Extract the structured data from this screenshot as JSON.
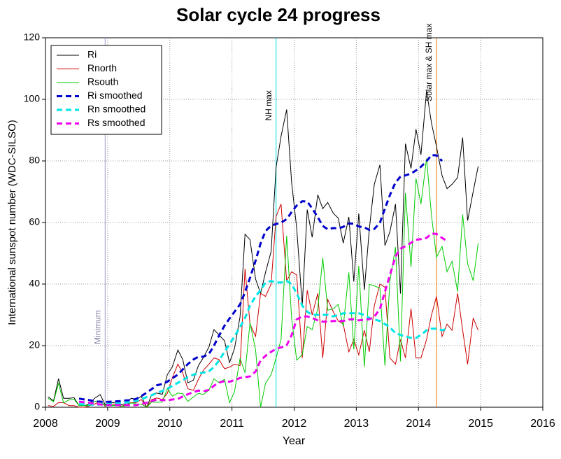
{
  "chart_data": {
    "type": "line",
    "title": "Solar cycle 24 progress",
    "xlabel": "Year",
    "ylabel": "International sunspot number (WDC-SILSO)",
    "xlim": [
      2008,
      2016
    ],
    "xticks": [
      2008,
      2009,
      2010,
      2011,
      2012,
      2013,
      2014,
      2015,
      2016
    ],
    "ylim": [
      0,
      120
    ],
    "yticks": [
      0,
      20,
      40,
      60,
      80,
      100,
      120
    ],
    "grid": true,
    "legend": "upper left",
    "x": [
      2008.04,
      2008.13,
      2008.21,
      2008.29,
      2008.38,
      2008.46,
      2008.54,
      2008.63,
      2008.71,
      2008.79,
      2008.88,
      2008.96,
      2009.04,
      2009.13,
      2009.21,
      2009.29,
      2009.38,
      2009.46,
      2009.54,
      2009.63,
      2009.71,
      2009.79,
      2009.88,
      2009.96,
      2010.04,
      2010.13,
      2010.21,
      2010.29,
      2010.38,
      2010.46,
      2010.54,
      2010.63,
      2010.71,
      2010.79,
      2010.88,
      2010.96,
      2011.04,
      2011.13,
      2011.21,
      2011.29,
      2011.38,
      2011.46,
      2011.54,
      2011.63,
      2011.71,
      2011.79,
      2011.88,
      2011.96,
      2012.04,
      2012.13,
      2012.21,
      2012.29,
      2012.38,
      2012.46,
      2012.54,
      2012.63,
      2012.71,
      2012.79,
      2012.88,
      2012.96,
      2013.04,
      2013.13,
      2013.21,
      2013.29,
      2013.38,
      2013.46,
      2013.54,
      2013.63,
      2013.71,
      2013.79,
      2013.88,
      2013.96,
      2014.04,
      2014.13,
      2014.21,
      2014.29,
      2014.38,
      2014.46,
      2014.54,
      2014.63,
      2014.71,
      2014.79,
      2014.88,
      2014.96
    ],
    "series": [
      {
        "name": "Ri",
        "color": "#000000",
        "dashed": false,
        "values": [
          3.4,
          2.1,
          9.3,
          2.9,
          2.9,
          3.1,
          0.5,
          0.5,
          1.1,
          2.9,
          4.1,
          0.8,
          1.5,
          1.4,
          0.7,
          1.2,
          2.9,
          2.6,
          3.5,
          0.0,
          4.2,
          4.6,
          4.2,
          10.6,
          13.1,
          18.6,
          15.4,
          7.9,
          8.8,
          13.5,
          16.1,
          19.6,
          25.2,
          23.5,
          21.6,
          14.5,
          19.0,
          29.4,
          56.2,
          54.4,
          41.6,
          37.0,
          43.8,
          50.6,
          78.0,
          88.0,
          96.7,
          73.0,
          58.3,
          33.1,
          64.2,
          55.2,
          69.0,
          64.5,
          66.5,
          63.0,
          61.4,
          53.3,
          61.8,
          40.8,
          62.9,
          38.1,
          57.9,
          72.4,
          78.7,
          52.5,
          57.0,
          66.0,
          36.9,
          85.6,
          77.6,
          90.3,
          82.0,
          102.8,
          92.2,
          84.7,
          75.2,
          71.0,
          72.4,
          74.6,
          87.6,
          60.6,
          70.1,
          78.3
        ]
      },
      {
        "name": "Rnorth",
        "color": "#cc0000",
        "dashed": false,
        "values": [
          0.5,
          0.3,
          1.5,
          1.5,
          0.5,
          0.5,
          0,
          0,
          0.5,
          1,
          2,
          0.3,
          1.0,
          0.8,
          0.3,
          0.8,
          1.5,
          1.5,
          2.5,
          0,
          2.5,
          3.0,
          2.5,
          4.5,
          9.5,
          14,
          11,
          6,
          5.5,
          9,
          12,
          14,
          16,
          15.5,
          12.5,
          13,
          14,
          13.5,
          45,
          27,
          23,
          37,
          36,
          40,
          62,
          66,
          41,
          44,
          43,
          16,
          38,
          30,
          37,
          16,
          35,
          31,
          28,
          27,
          18,
          22,
          17,
          25,
          18,
          33,
          40,
          39,
          16,
          14,
          22,
          16,
          32,
          16,
          16,
          22,
          30,
          36,
          23,
          27,
          25,
          37,
          25,
          14,
          29,
          25
        ]
      },
      {
        "name": "Rsouth",
        "color": "#00cc00",
        "dashed": false,
        "values": [
          2.9,
          1.8,
          7.8,
          1.4,
          2.4,
          2.6,
          0.5,
          0.5,
          0.6,
          1.9,
          2.1,
          0.5,
          0.5,
          0.6,
          0.4,
          0.4,
          1.4,
          1.1,
          1.0,
          0,
          1.7,
          1.6,
          1.7,
          6.1,
          3.6,
          4.6,
          4.4,
          1.9,
          3.3,
          4.5,
          4.1,
          5.6,
          9.2,
          8,
          9.1,
          1.5,
          5,
          15.9,
          11.2,
          27.4,
          18.6,
          0,
          7.8,
          10.6,
          16,
          22,
          55.7,
          29,
          15.3,
          17.1,
          26.2,
          25.2,
          32,
          48.5,
          31.5,
          32,
          33.4,
          26.3,
          43.8,
          18.8,
          45.9,
          13.1,
          39.9,
          39.4,
          38.7,
          13.5,
          41,
          52,
          14.9,
          69.6,
          45.6,
          74.3,
          66,
          80.8,
          62.2,
          48.7,
          52.2,
          44,
          47.4,
          37.6,
          62.6,
          46.6,
          41.1,
          53.3
        ]
      },
      {
        "name": "Ri smoothed",
        "color": "#0000cc",
        "dashed": true,
        "x": [
          2008.54,
          2008.63,
          2008.71,
          2008.79,
          2008.88,
          2008.96,
          2009.04,
          2009.13,
          2009.21,
          2009.29,
          2009.38,
          2009.46,
          2009.54,
          2009.63,
          2009.71,
          2009.79,
          2009.88,
          2009.96,
          2010.04,
          2010.13,
          2010.21,
          2010.29,
          2010.38,
          2010.46,
          2010.54,
          2010.63,
          2010.71,
          2010.79,
          2010.88,
          2010.96,
          2011.04,
          2011.13,
          2011.21,
          2011.29,
          2011.38,
          2011.46,
          2011.54,
          2011.63,
          2011.71,
          2011.79,
          2011.88,
          2011.96,
          2012.04,
          2012.13,
          2012.21,
          2012.29,
          2012.38,
          2012.46,
          2012.54,
          2012.63,
          2012.71,
          2012.79,
          2012.88,
          2012.96,
          2013.04,
          2013.13,
          2013.21,
          2013.29,
          2013.38,
          2013.46,
          2013.54,
          2013.63,
          2013.71,
          2013.79,
          2013.88,
          2013.96,
          2014.04,
          2014.13,
          2014.21,
          2014.29,
          2014.38
        ],
        "values": [
          2.8,
          2.5,
          2.3,
          1.9,
          1.8,
          1.7,
          1.8,
          1.9,
          2.0,
          2.2,
          2.3,
          2.7,
          3.6,
          4.8,
          5.9,
          7.1,
          7.6,
          8.3,
          9.4,
          10.6,
          12.3,
          14.0,
          15.5,
          16.4,
          16.4,
          17.3,
          20.0,
          23.2,
          26.5,
          28.8,
          31.0,
          33.4,
          37.4,
          42.0,
          47.6,
          53.2,
          57.2,
          59.0,
          59.5,
          59.9,
          61.1,
          63.4,
          65.5,
          66.9,
          66.8,
          64.6,
          61.7,
          58.9,
          57.8,
          58.2,
          58.1,
          58.6,
          59.7,
          59.6,
          58.7,
          58.4,
          57.6,
          57.9,
          59.9,
          64.5,
          68.9,
          73.0,
          74.9,
          75.3,
          75.9,
          76.9,
          78.1,
          79.9,
          81.9,
          81.8,
          80.0
        ]
      },
      {
        "name": "Rn smoothed",
        "color": "#00e5e5",
        "dashed": true,
        "x": [
          2008.54,
          2008.63,
          2008.71,
          2008.79,
          2008.88,
          2008.96,
          2009.04,
          2009.13,
          2009.21,
          2009.29,
          2009.38,
          2009.46,
          2009.54,
          2009.63,
          2009.71,
          2009.79,
          2009.88,
          2009.96,
          2010.04,
          2010.13,
          2010.21,
          2010.29,
          2010.38,
          2010.46,
          2010.54,
          2010.63,
          2010.71,
          2010.79,
          2010.88,
          2010.96,
          2011.04,
          2011.13,
          2011.21,
          2011.29,
          2011.38,
          2011.46,
          2011.54,
          2011.63,
          2011.71,
          2011.79,
          2011.88,
          2011.96,
          2012.04,
          2012.13,
          2012.21,
          2012.29,
          2012.38,
          2012.46,
          2012.54,
          2012.63,
          2012.71,
          2012.79,
          2012.88,
          2012.96,
          2013.04,
          2013.13,
          2013.21,
          2013.29,
          2013.38,
          2013.46,
          2013.54,
          2013.63,
          2013.71,
          2013.79,
          2013.88,
          2013.96,
          2014.04,
          2014.13,
          2014.21,
          2014.29,
          2014.38,
          2014.46
        ],
        "values": [
          1.0,
          0.9,
          0.9,
          0.8,
          0.9,
          1.0,
          1.1,
          1.2,
          1.3,
          1.5,
          1.7,
          2.0,
          2.6,
          3.3,
          3.9,
          4.6,
          5.3,
          6.0,
          6.9,
          7.9,
          8.8,
          9.8,
          10.6,
          11.0,
          11.2,
          11.7,
          13.0,
          15.2,
          18.0,
          20.5,
          23,
          26,
          29,
          33,
          36,
          38,
          40.5,
          41,
          40.5,
          40.5,
          41,
          40,
          37,
          33,
          31,
          30,
          30,
          30,
          30,
          29.5,
          30,
          30.5,
          30.5,
          30.5,
          30.5,
          30,
          29,
          28.5,
          28,
          27,
          26,
          24,
          23.5,
          23,
          22.5,
          22.5,
          23.5,
          25,
          25.5,
          25.5,
          25,
          25.5
        ]
      },
      {
        "name": "Rs smoothed",
        "color": "#ee00ee",
        "dashed": true,
        "x": [
          2008.54,
          2008.63,
          2008.71,
          2008.79,
          2008.88,
          2008.96,
          2009.04,
          2009.13,
          2009.21,
          2009.29,
          2009.38,
          2009.46,
          2009.54,
          2009.63,
          2009.71,
          2009.79,
          2009.88,
          2009.96,
          2010.04,
          2010.13,
          2010.21,
          2010.29,
          2010.38,
          2010.46,
          2010.54,
          2010.63,
          2010.71,
          2010.79,
          2010.88,
          2010.96,
          2011.04,
          2011.13,
          2011.21,
          2011.29,
          2011.38,
          2011.46,
          2011.54,
          2011.63,
          2011.71,
          2011.79,
          2011.88,
          2011.96,
          2012.04,
          2012.13,
          2012.21,
          2012.29,
          2012.38,
          2012.46,
          2012.54,
          2012.63,
          2012.71,
          2012.79,
          2012.88,
          2012.96,
          2013.04,
          2013.13,
          2013.21,
          2013.29,
          2013.38,
          2013.46,
          2013.54,
          2013.63,
          2013.71,
          2013.79,
          2013.88,
          2013.96,
          2014.04,
          2014.13,
          2014.21,
          2014.29,
          2014.38,
          2014.46
        ],
        "values": [
          1.8,
          1.6,
          1.4,
          1.1,
          0.9,
          0.7,
          0.7,
          0.7,
          0.7,
          0.7,
          0.6,
          0.7,
          1.0,
          1.5,
          2.0,
          2.5,
          2.3,
          2.3,
          2.5,
          2.7,
          3.5,
          4.2,
          4.9,
          5.4,
          5.2,
          5.6,
          7.0,
          8.0,
          8.5,
          8.3,
          8.8,
          9.5,
          9.8,
          10.0,
          11.6,
          15.2,
          16.7,
          18.0,
          19.0,
          19.4,
          20.1,
          23.4,
          28.5,
          29.5,
          29.5,
          29,
          28.2,
          27.8,
          27.8,
          28,
          28,
          28,
          28.5,
          28.6,
          28.2,
          28.4,
          28.6,
          29.4,
          31.9,
          37.5,
          42.9,
          49,
          51.5,
          52.3,
          53.4,
          54.4,
          54.6,
          55,
          56.4,
          56.3,
          55,
          54
        ]
      }
    ],
    "annotations": [
      {
        "text": "Minimum",
        "x": 2008.96,
        "color": "#9999cc",
        "text_color": "#8888aa",
        "y": 26
      },
      {
        "text": "NH max",
        "x": 2011.71,
        "color": "#00dddd",
        "text_color": "#000000",
        "y": 98
      },
      {
        "text": "Solar max & SH max",
        "x": 2014.29,
        "color": "#ee7700",
        "text_color": "#000000",
        "y": 112
      }
    ]
  }
}
